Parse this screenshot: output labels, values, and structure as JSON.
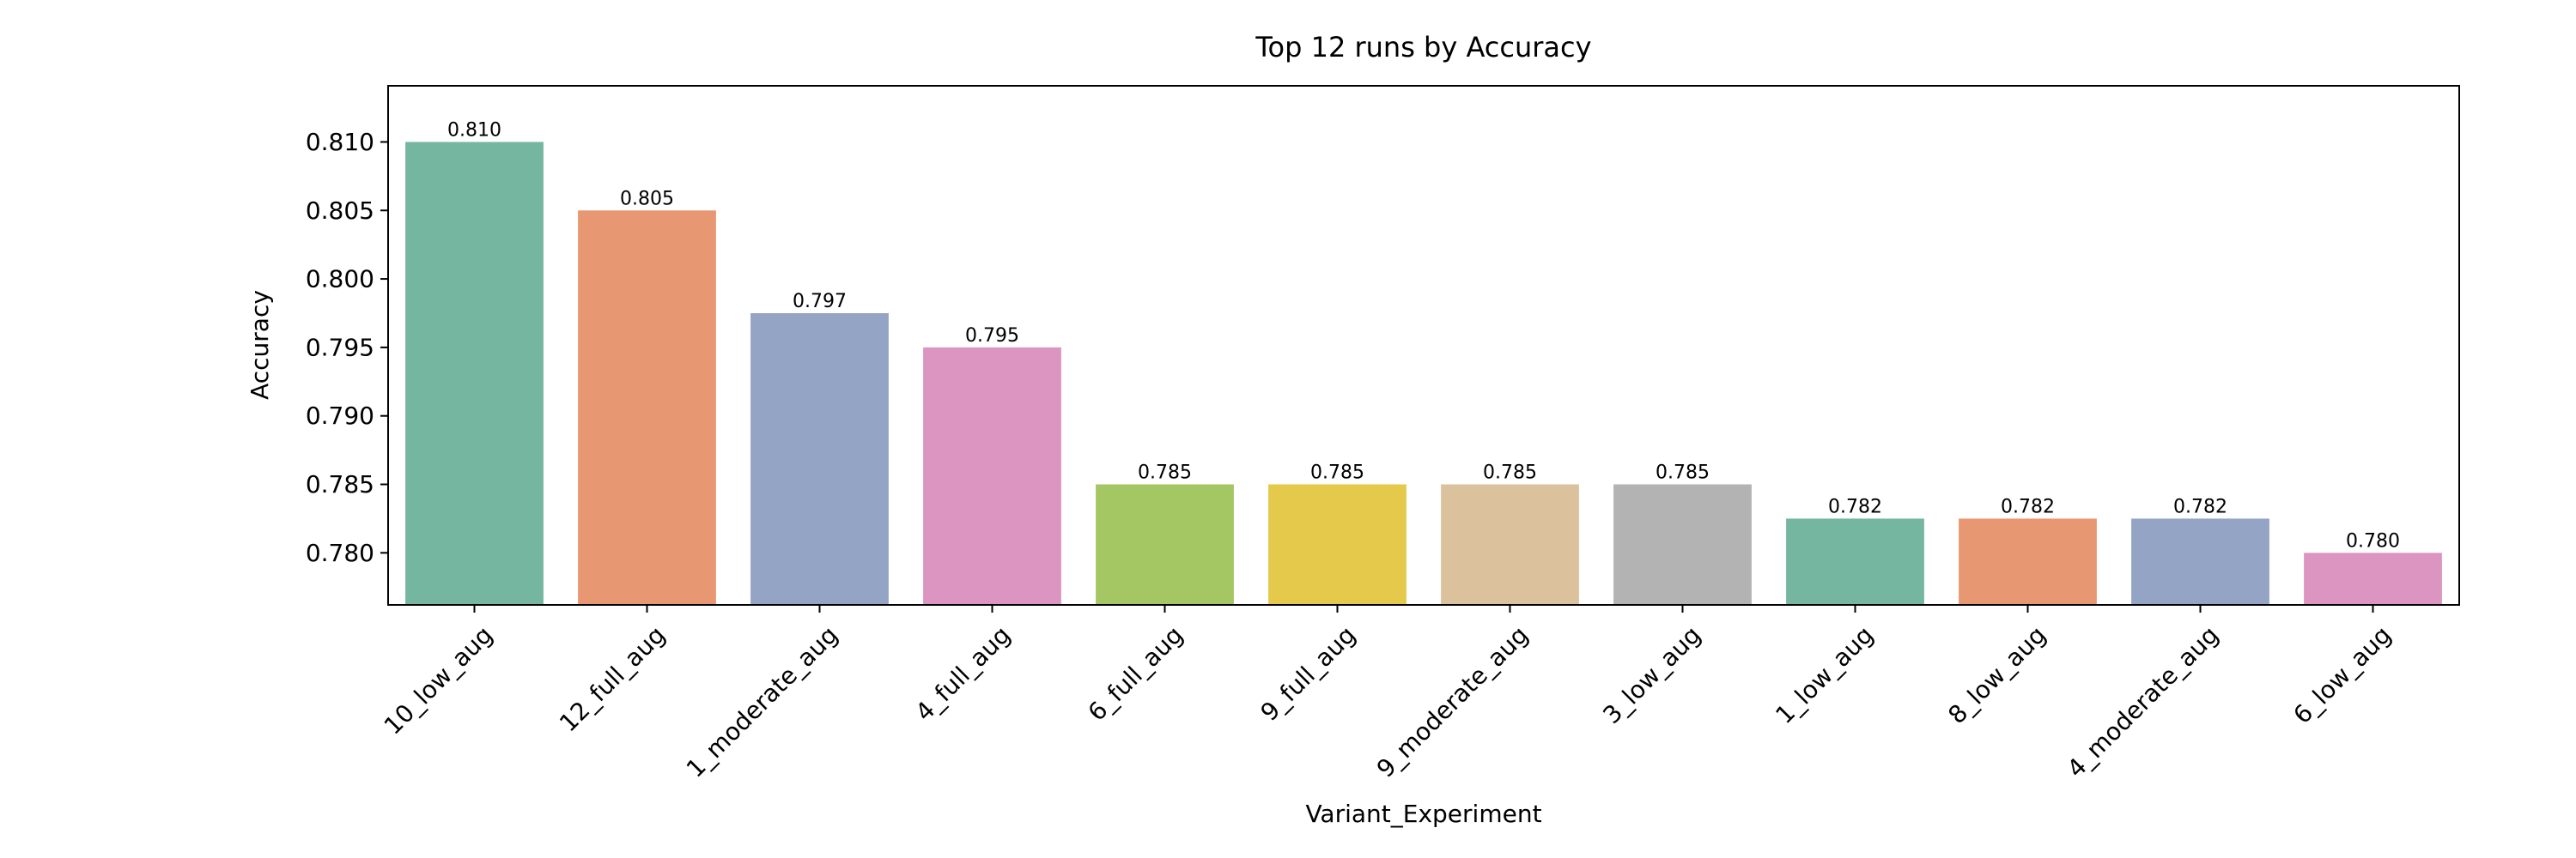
{
  "chart_data": {
    "type": "bar",
    "title": "Top 12 runs by Accuracy",
    "xlabel": "Variant_Experiment",
    "ylabel": "Accuracy",
    "categories": [
      "10_low_aug",
      "12_full_aug",
      "1_moderate_aug",
      "4_full_aug",
      "6_full_aug",
      "9_full_aug",
      "9_moderate_aug",
      "3_low_aug",
      "1_low_aug",
      "8_low_aug",
      "4_moderate_aug",
      "6_low_aug"
    ],
    "values": [
      0.81,
      0.805,
      0.7975,
      0.795,
      0.785,
      0.785,
      0.785,
      0.785,
      0.7825,
      0.7825,
      0.7825,
      0.78
    ],
    "value_labels": [
      "0.810",
      "0.805",
      "0.797",
      "0.795",
      "0.785",
      "0.785",
      "0.785",
      "0.785",
      "0.782",
      "0.782",
      "0.782",
      "0.780"
    ],
    "colors": [
      "#74b6a0",
      "#e89773",
      "#94a4c4",
      "#dc95c0",
      "#a4c763",
      "#e4c94a",
      "#dbc29d",
      "#b3b3b3",
      "#74b6a0",
      "#e89773",
      "#94a4c4",
      "#dc95c0"
    ],
    "yticks": [
      0.78,
      0.785,
      0.79,
      0.795,
      0.8,
      0.805,
      0.81
    ],
    "ytick_labels": [
      "0.780",
      "0.785",
      "0.790",
      "0.795",
      "0.800",
      "0.805",
      "0.810"
    ],
    "ylim": [
      0.7762,
      0.8141
    ],
    "grid": false,
    "legend": "none"
  }
}
